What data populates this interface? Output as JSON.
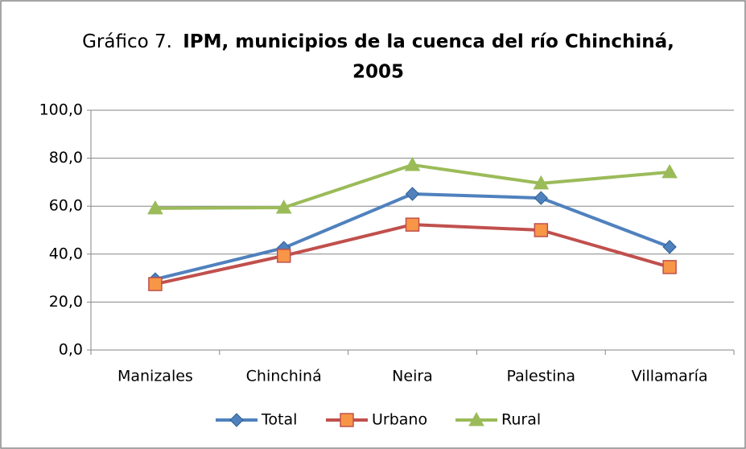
{
  "chart_data": {
    "type": "line",
    "title": [
      "Gráfico 7.",
      "IPM, municipios de la cuenca del río Chinchiná,",
      "2005"
    ],
    "categories": [
      "Manizales",
      "Chinchiná",
      "Neira",
      "Palestina",
      "Villamaría"
    ],
    "series": [
      {
        "name": "Total",
        "color": "#4f81bd",
        "marker": "diamond",
        "values": [
          29.5,
          42.6,
          65.1,
          63.4,
          43.0
        ]
      },
      {
        "name": "Urbano",
        "color": "#c0504d",
        "marker": "square",
        "marker_fill": "#f79646",
        "values": [
          27.5,
          39.3,
          52.3,
          50.0,
          34.6
        ]
      },
      {
        "name": "Rural",
        "color": "#9bbb59",
        "marker": "triangle",
        "values": [
          59.1,
          59.4,
          77.2,
          69.5,
          74.2
        ]
      }
    ],
    "ylim": [
      0,
      100
    ],
    "yticks": [
      {
        "value": 0,
        "label": "0,0"
      },
      {
        "value": 20,
        "label": "20,0"
      },
      {
        "value": 40,
        "label": "40,0"
      },
      {
        "value": 60,
        "label": "60,0"
      },
      {
        "value": 80,
        "label": "80,0"
      },
      {
        "value": 100,
        "label": "100,0"
      }
    ],
    "grid": true,
    "legend": "bottom"
  }
}
